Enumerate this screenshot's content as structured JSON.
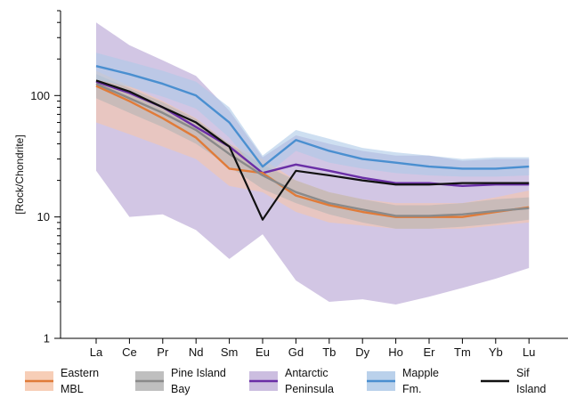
{
  "chart_data": {
    "type": "line",
    "ylabel": "[Rock/Chondrite]",
    "yscale": "log",
    "ylim": [
      1,
      500
    ],
    "yticks": [
      {
        "value": 1,
        "label": "1"
      },
      {
        "value": 10,
        "label": "10"
      },
      {
        "value": 100,
        "label": "100"
      }
    ],
    "categories": [
      "La",
      "Ce",
      "Pr",
      "Nd",
      "Sm",
      "Eu",
      "Gd",
      "Tb",
      "Dy",
      "Ho",
      "Er",
      "Tm",
      "Yb",
      "Lu"
    ],
    "legend_position": "bottom",
    "series": [
      {
        "name": "Antarctic Peninsula",
        "line_color": "#6a2ea6",
        "band_color": "#c3b3db",
        "values": [
          130,
          105,
          80,
          55,
          38,
          23,
          27,
          24,
          21,
          19,
          19,
          18,
          18.5,
          18.5
        ],
        "upper": [
          400,
          260,
          195,
          145,
          75,
          31,
          47,
          40,
          35,
          32,
          32,
          29,
          30,
          30
        ],
        "lower": [
          24,
          10,
          10.5,
          7.8,
          4.5,
          7.2,
          3,
          2,
          2.1,
          1.9,
          2.2,
          2.6,
          3.1,
          3.8
        ]
      },
      {
        "name": "Eastern MBL",
        "line_color": "#e07b39",
        "band_color": "#f6c6aa",
        "values": [
          120,
          90,
          65,
          45,
          25,
          23,
          15,
          12.5,
          11,
          10,
          10,
          10,
          11,
          12
        ],
        "upper": [
          160,
          120,
          90,
          65,
          40,
          30,
          20,
          16,
          14,
          13,
          13,
          13,
          14.5,
          16.5
        ],
        "lower": [
          60,
          48,
          38,
          30,
          18,
          16,
          11,
          9,
          8.5,
          8,
          8,
          8,
          8.5,
          9
        ]
      },
      {
        "name": "Pine Island Bay",
        "line_color": "#8a8a8a",
        "band_color": "#b4b4b4",
        "values": [
          125,
          95,
          72,
          52,
          33,
          22,
          16,
          13,
          11.5,
          10.2,
          10.2,
          10.5,
          11.2,
          11.8
        ],
        "upper": [
          150,
          115,
          88,
          64,
          40,
          27,
          20,
          16,
          14,
          12.5,
          12.5,
          13,
          14,
          14.5
        ],
        "lower": [
          95,
          72,
          55,
          40,
          26,
          17,
          13,
          10.5,
          9,
          8,
          8,
          8.3,
          8.8,
          9.5
        ]
      },
      {
        "name": "Mapple Fm.",
        "line_color": "#4a8fd0",
        "band_color": "#aec9e8",
        "values": [
          175,
          150,
          125,
          100,
          60,
          26,
          43,
          35,
          30,
          28,
          26,
          25,
          25,
          26
        ],
        "upper": [
          225,
          190,
          160,
          130,
          80,
          32,
          52,
          44,
          37,
          34,
          32,
          30,
          31,
          31
        ],
        "lower": [
          135,
          118,
          98,
          78,
          45,
          21,
          35,
          28,
          25,
          23,
          22,
          21.5,
          21.5,
          22
        ]
      },
      {
        "name": "Sif Island",
        "line_color": "#111111",
        "band_color": "",
        "values": [
          133,
          108,
          80,
          60,
          38,
          9.5,
          24,
          22,
          20,
          18.5,
          18.5,
          19,
          19,
          19
        ],
        "upper": null,
        "lower": null
      }
    ],
    "legend": [
      {
        "series": "Eastern MBL",
        "line1": "Eastern",
        "line2": "MBL"
      },
      {
        "series": "Pine Island Bay",
        "line1": "Pine Island",
        "line2": "Bay"
      },
      {
        "series": "Antarctic Peninsula",
        "line1": "Antarctic",
        "line2": "Peninsula"
      },
      {
        "series": "Mapple Fm.",
        "line1": "Mapple",
        "line2": "Fm."
      },
      {
        "series": "Sif Island",
        "line1": "Sif",
        "line2": "Island"
      }
    ]
  }
}
